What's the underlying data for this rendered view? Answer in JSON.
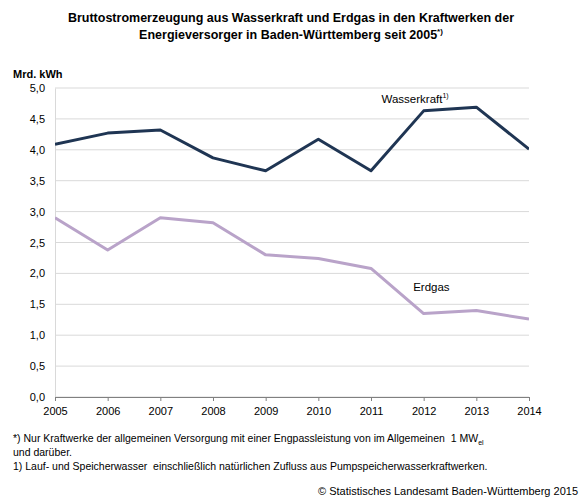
{
  "chart_data": {
    "type": "line",
    "title": [
      "Bruttostromerzeugung aus Wasserkraft und Erdgas in den Kraftwerken der",
      "Energieversorger in Baden-Württemberg seit 2005"
    ],
    "title_sup": "*)",
    "y_label": "Mrd. kWh",
    "x": [
      2005,
      2006,
      2007,
      2008,
      2009,
      2010,
      2011,
      2012,
      2013,
      2014
    ],
    "xlim": [
      2005,
      2014
    ],
    "xticks": [
      2005,
      2006,
      2007,
      2008,
      2009,
      2010,
      2011,
      2012,
      2013,
      2014
    ],
    "ylim": [
      0,
      5
    ],
    "yticks": [
      {
        "value": 0,
        "label": "0,0"
      },
      {
        "value": 0.5,
        "label": "0,5"
      },
      {
        "value": 1,
        "label": "1,0"
      },
      {
        "value": 1.5,
        "label": "1,5"
      },
      {
        "value": 2,
        "label": "2,0"
      },
      {
        "value": 2.5,
        "label": "2,5"
      },
      {
        "value": 3,
        "label": "3,0"
      },
      {
        "value": 3.5,
        "label": "3,5"
      },
      {
        "value": 4,
        "label": "4,0"
      },
      {
        "value": 4.5,
        "label": "4,5"
      },
      {
        "value": 5,
        "label": "5,0"
      }
    ],
    "grid": true,
    "series": [
      {
        "name": "Wasserkraft",
        "name_sup": "1)",
        "color": "#1f3553",
        "values": [
          4.09,
          4.27,
          4.32,
          3.87,
          3.66,
          4.17,
          3.66,
          4.63,
          4.69,
          4.01
        ]
      },
      {
        "name": "Erdgas",
        "color": "#b9a3c9",
        "values": [
          2.9,
          2.38,
          2.9,
          2.82,
          2.3,
          2.24,
          2.08,
          1.35,
          1.4,
          1.26
        ]
      }
    ],
    "notes": [
      {
        "text": "*) Nur Kraftwerke der allgemeinen Versorgung mit einer Engpassleistung von im Allgemeinen  1 MW",
        "sub": "el"
      },
      {
        "text": "und darüber."
      },
      {
        "text": "1) Lauf- und Speicherwasser  einschließlich natürlichen Zufluss aus Pumpspeicherwasserkraftwerken."
      }
    ],
    "source": "© Statistisches Landesamt Baden-Württemberg 2015"
  }
}
